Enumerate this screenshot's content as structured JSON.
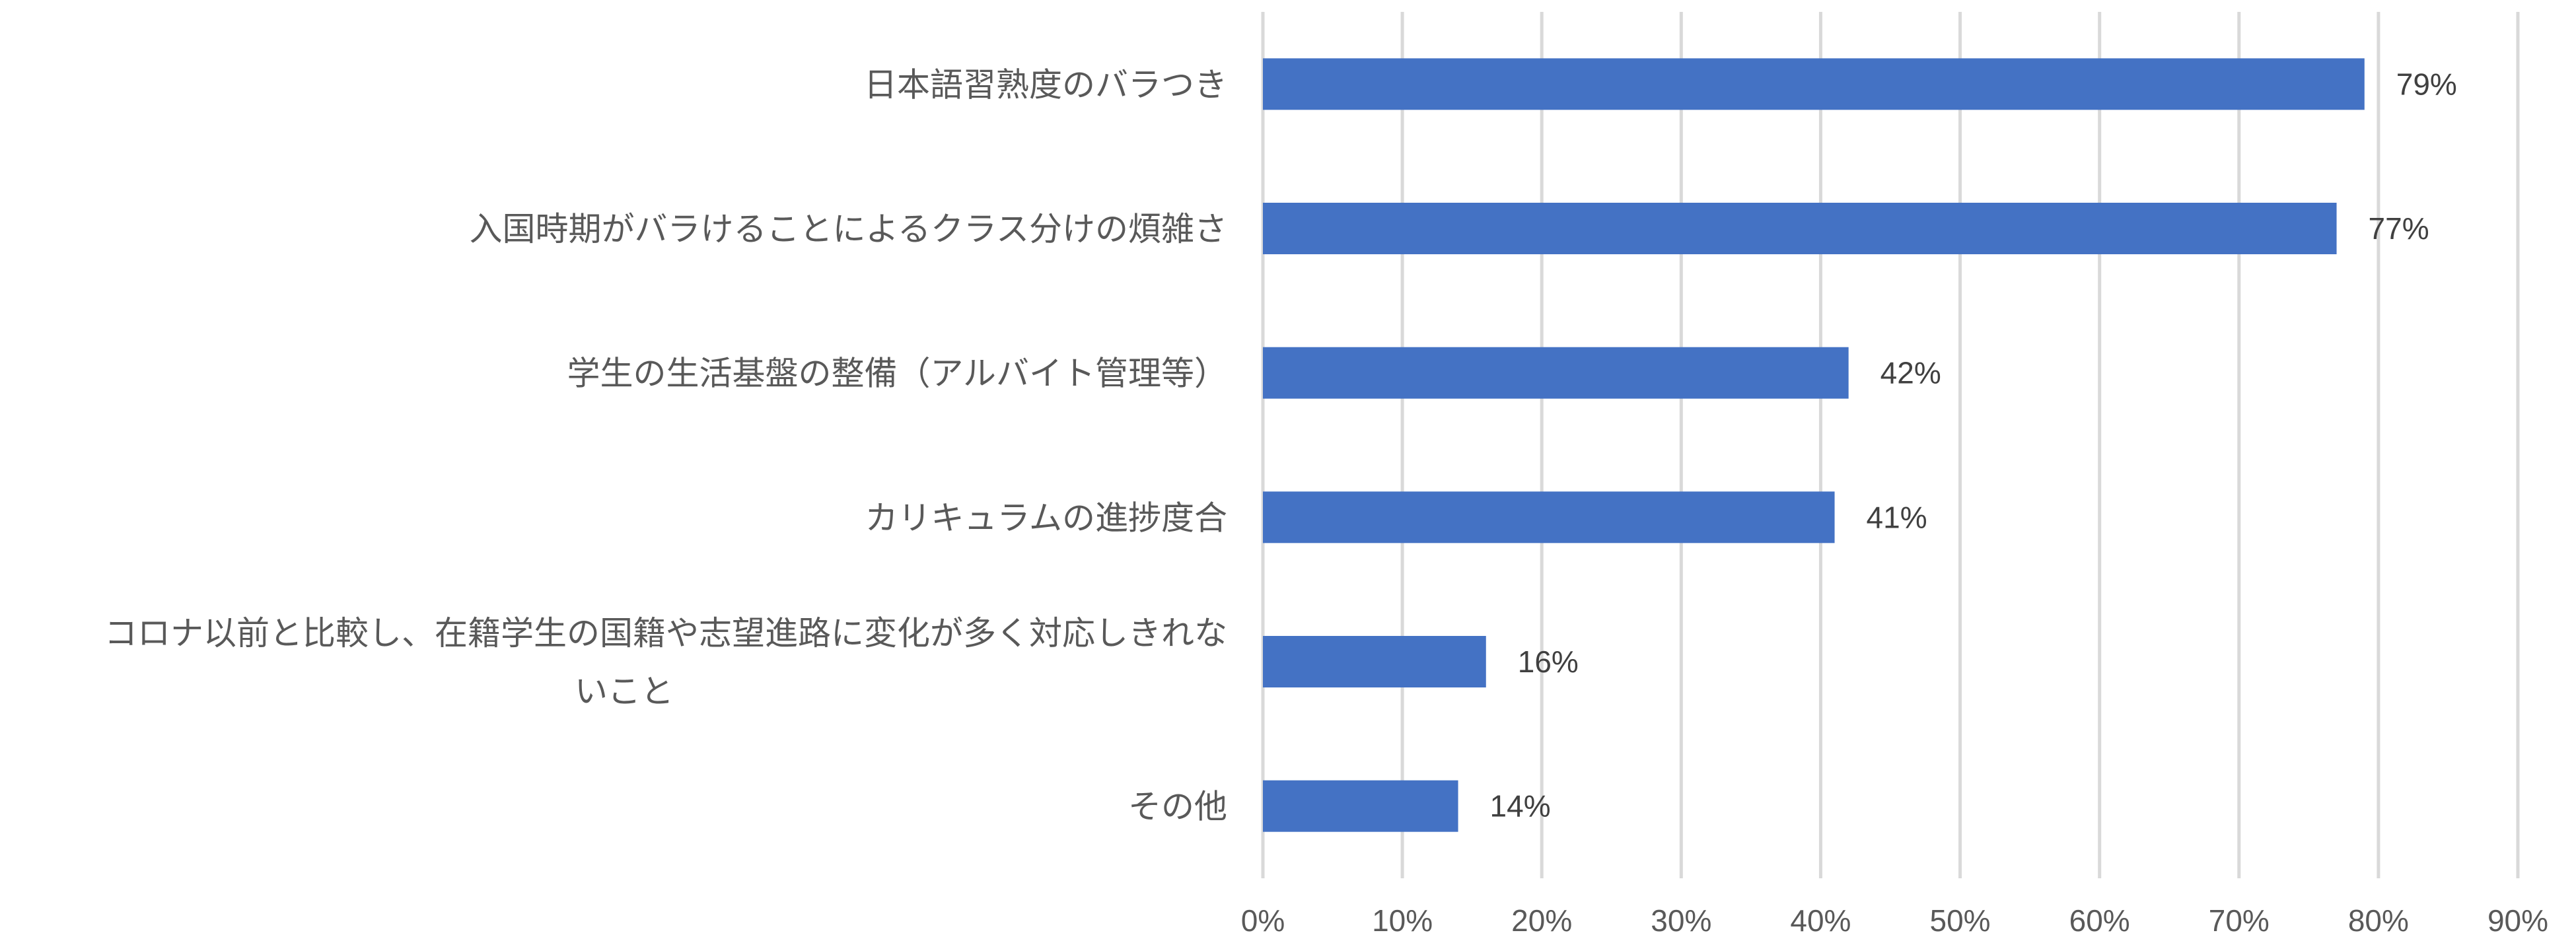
{
  "chart_data": {
    "type": "bar",
    "orientation": "horizontal",
    "categories": [
      "日本語習熟度のバラつき",
      "入国時期がバラけることによるクラス分けの煩雑さ",
      "学生の生活基盤の整備（アルバイト管理等）",
      "カリキュラムの進捗度合",
      "コロナ以前と比較し、在籍学生の国籍や志望進路に変化が多く対応しきれないこと",
      "その他"
    ],
    "category_label_lines": [
      [
        "日本語習熟度のバラつき"
      ],
      [
        "入国時期がバラけることによるクラス分けの煩雑さ"
      ],
      [
        "学生の生活基盤の整備（アルバイト管理等）"
      ],
      [
        "カリキュラムの進捗度合"
      ],
      [
        "コロナ以前と比較し、在籍学生の国籍や志望進路に変化が多く対応しきれな",
        "いこと"
      ],
      [
        "その他"
      ]
    ],
    "values": [
      79,
      77,
      42,
      41,
      16,
      14
    ],
    "data_labels": [
      "79%",
      "77%",
      "42%",
      "41%",
      "16%",
      "14%"
    ],
    "xlim": [
      0,
      90
    ],
    "x_ticks": [
      0,
      10,
      20,
      30,
      40,
      50,
      60,
      70,
      80,
      90
    ],
    "x_tick_labels": [
      "0%",
      "10%",
      "20%",
      "30%",
      "40%",
      "50%",
      "60%",
      "70%",
      "80%",
      "90%"
    ],
    "bar_color": "#4472c4",
    "grid": true,
    "legend": "none",
    "title": "",
    "xlabel": "",
    "ylabel": ""
  }
}
